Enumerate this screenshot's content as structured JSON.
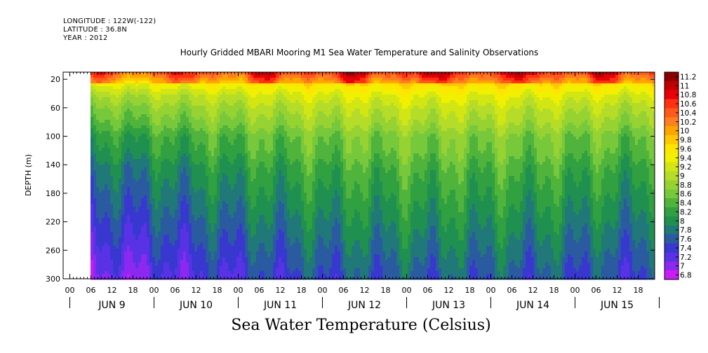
{
  "header": {
    "longitude": "LONGITUDE : 122W(-122)",
    "latitude": "LATITUDE : 36.8N",
    "year": "YEAR : 2012"
  },
  "chart_data": {
    "type": "heatmap",
    "title": "Hourly Gridded MBARI Mooring M1 Sea Water Temperature and Salinity Observations",
    "xlabel": "Sea Water Temperature (Celsius)",
    "ylabel": "DEPTH (m)",
    "y_ticks": [
      20,
      60,
      100,
      140,
      180,
      220,
      260,
      300
    ],
    "ylim": [
      10,
      300
    ],
    "x_hour_ticks": [
      "00",
      "06",
      "12",
      "18",
      "00",
      "06",
      "12",
      "18",
      "00",
      "06",
      "12",
      "18",
      "00",
      "06",
      "12",
      "18",
      "00",
      "06",
      "12",
      "18",
      "00",
      "06",
      "12",
      "18",
      "00",
      "06",
      "12",
      "18"
    ],
    "x_day_labels": [
      "JUN  9",
      "JUN 10",
      "JUN 11",
      "JUN 12",
      "JUN 13",
      "JUN 14",
      "JUN 15"
    ],
    "colorbar": {
      "levels": [
        "11.2",
        "11",
        "10.8",
        "10.6",
        "10.4",
        "10.2",
        "10",
        "9.8",
        "9.6",
        "9.4",
        "9.2",
        "9",
        "8.8",
        "8.6",
        "8.4",
        "8.2",
        "8",
        "7.8",
        "7.6",
        "7.4",
        "7.2",
        "7",
        "6.8"
      ],
      "colors": [
        "#8b0000",
        "#c00000",
        "#e8000a",
        "#ff3010",
        "#ff5a1a",
        "#ff7f20",
        "#ffa500",
        "#ffc800",
        "#ffe600",
        "#f0f000",
        "#d2e614",
        "#b4dc28",
        "#96d232",
        "#78c83c",
        "#50b43c",
        "#30a040",
        "#209050",
        "#207878",
        "#2a5aa0",
        "#3838d0",
        "#5a32e6",
        "#8c28f0",
        "#c81ef5"
      ]
    },
    "depth_levels_m": [
      10,
      20,
      40,
      60,
      80,
      100,
      120,
      140,
      160,
      180,
      200,
      220,
      240,
      260,
      280,
      300
    ],
    "temperature_profile_typical_C": [
      10.0,
      9.6,
      9.1,
      8.8,
      8.6,
      8.3,
      8.2,
      8.0,
      7.9,
      7.8,
      7.7,
      7.6,
      7.5,
      7.4,
      7.3,
      7.2
    ],
    "data_start": "JUN 9 06",
    "data_end": "JUN 15 23"
  }
}
